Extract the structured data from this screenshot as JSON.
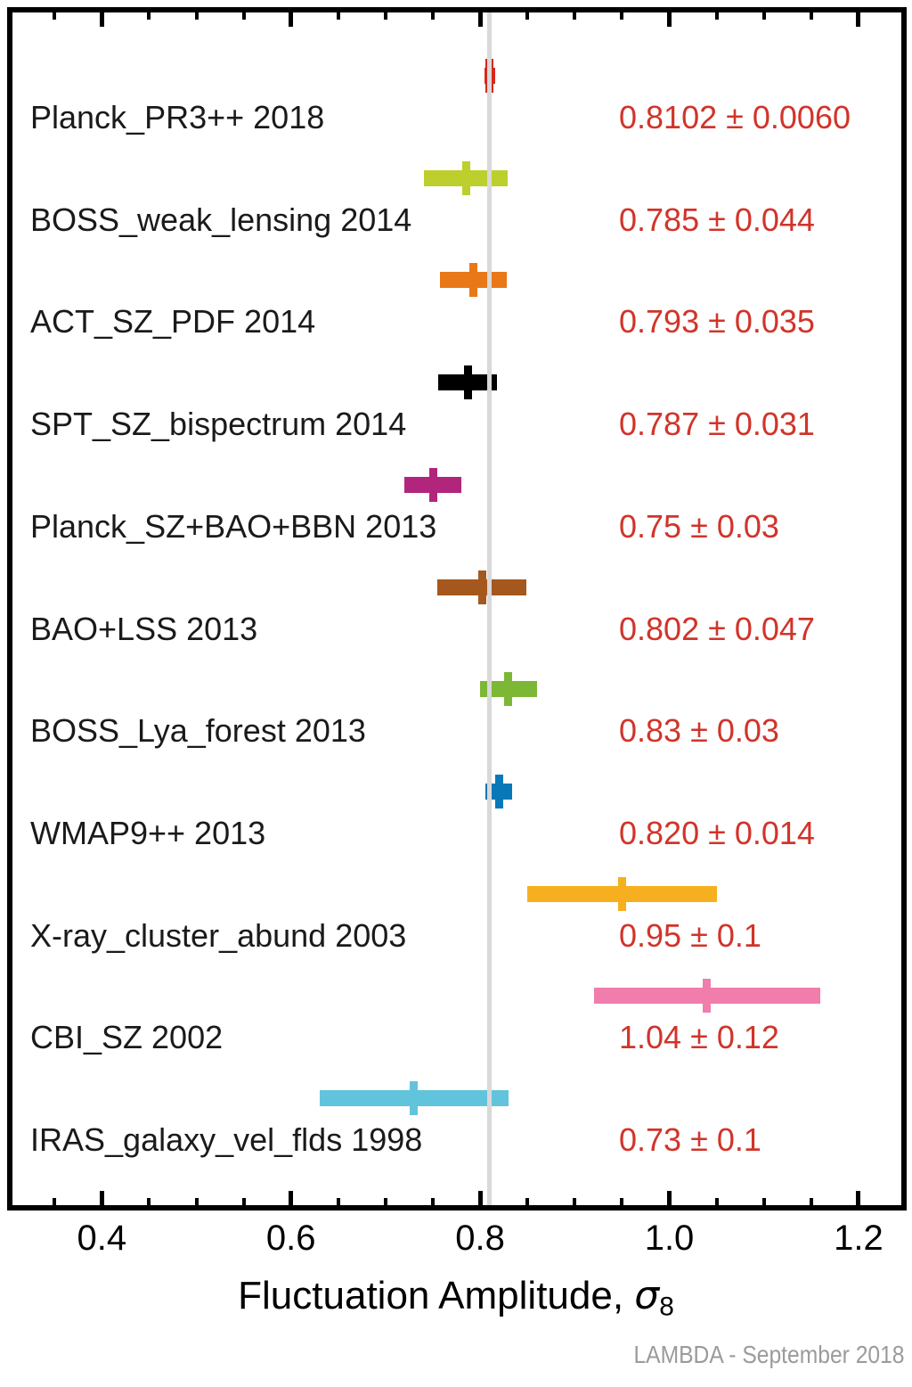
{
  "figure": {
    "xlabel_text": "Fluctuation Amplitude, ",
    "xlabel_symbol": "σ",
    "xlabel_subscript": "8",
    "attribution": "LAMBDA - September 2018"
  },
  "chart_data": {
    "type": "errorbar",
    "orientation": "horizontal",
    "title": "",
    "xlabel": "Fluctuation Amplitude, σ_8",
    "ylabel": "",
    "xlim": [
      0.3025,
      1.2445
    ],
    "grid": false,
    "legend": "none",
    "x_major_ticks": [
      0.4,
      0.6,
      0.8,
      1.0,
      1.2
    ],
    "x_major_tick_labels": [
      "0.4",
      "0.6",
      "0.8",
      "1.0",
      "1.2"
    ],
    "x_minor_tick_step": 0.05,
    "x_minor_tick_range": [
      0.35,
      1.2
    ],
    "reference_line": {
      "value": 0.8102,
      "color": "#d9d9d9"
    },
    "value_label_color": "#d1342a",
    "series": [
      {
        "label": "Planck_PR3++ 2018",
        "value": 0.8102,
        "error": 0.006,
        "display": "0.8102 ± 0.0060",
        "color": "#d42a1e"
      },
      {
        "label": "BOSS_weak_lensing 2014",
        "value": 0.785,
        "error": 0.044,
        "display": "0.785 ± 0.044",
        "color": "#bccf2c"
      },
      {
        "label": "ACT_SZ_PDF 2014",
        "value": 0.793,
        "error": 0.035,
        "display": "0.793 ± 0.035",
        "color": "#e87818"
      },
      {
        "label": "SPT_SZ_bispectrum 2014",
        "value": 0.787,
        "error": 0.031,
        "display": "0.787 ± 0.031",
        "color": "#000000"
      },
      {
        "label": "Planck_SZ+BAO+BBN 2013",
        "value": 0.75,
        "error": 0.03,
        "display": "0.75 ± 0.03",
        "color": "#b2257c"
      },
      {
        "label": "BAO+LSS 2013",
        "value": 0.802,
        "error": 0.047,
        "display": "0.802 ± 0.047",
        "color": "#a5581d"
      },
      {
        "label": "BOSS_Lya_forest 2013",
        "value": 0.83,
        "error": 0.03,
        "display": "0.83 ± 0.03",
        "color": "#7cb836"
      },
      {
        "label": "WMAP9++ 2013",
        "value": 0.82,
        "error": 0.014,
        "display": "0.820 ± 0.014",
        "color": "#0878b8"
      },
      {
        "label": "X-ray_cluster_abund 2003",
        "value": 0.95,
        "error": 0.1,
        "display": "0.95 ± 0.1",
        "color": "#f6b01f"
      },
      {
        "label": "CBI_SZ 2002",
        "value": 1.04,
        "error": 0.12,
        "display": "1.04 ± 0.12",
        "color": "#f07dab"
      },
      {
        "label": "IRAS_galaxy_vel_flds 1998",
        "value": 0.73,
        "error": 0.1,
        "display": "0.73 ± 0.1",
        "color": "#62c4dc"
      }
    ]
  }
}
